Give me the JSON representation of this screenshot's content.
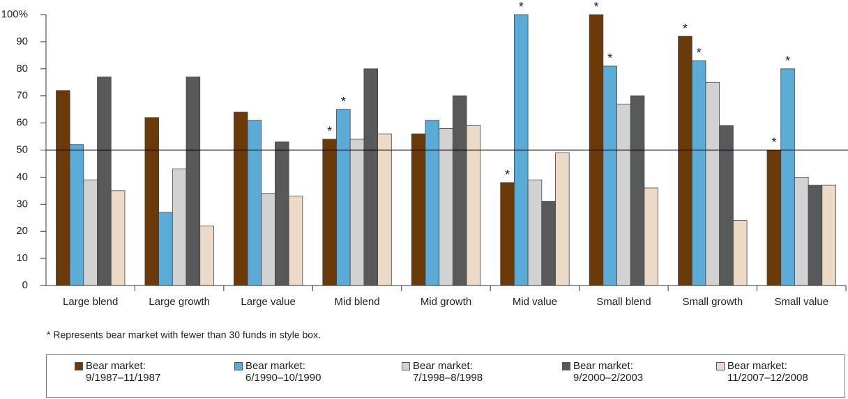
{
  "chart_data": {
    "type": "bar",
    "categories": [
      "Large blend",
      "Large growth",
      "Large value",
      "Mid blend",
      "Mid growth",
      "Mid value",
      "Small blend",
      "Small growth",
      "Small value"
    ],
    "series": [
      {
        "name": "Bear market:\n9/1987–11/1987",
        "color": "#6b3a08",
        "values": [
          72,
          62,
          64,
          54,
          56,
          38,
          100,
          92,
          50
        ],
        "starred": [
          false,
          false,
          false,
          true,
          false,
          true,
          true,
          true,
          true
        ]
      },
      {
        "name": "Bear market:\n6/1990–10/1990",
        "color": "#5aabd6",
        "values": [
          52,
          27,
          61,
          65,
          61,
          100,
          81,
          83,
          80
        ],
        "starred": [
          false,
          false,
          false,
          true,
          false,
          true,
          true,
          true,
          true
        ]
      },
      {
        "name": "Bear market:\n7/1998–8/1998",
        "color": "#d2d2d2",
        "values": [
          39,
          43,
          34,
          54,
          58,
          39,
          67,
          75,
          40
        ],
        "starred": [
          false,
          false,
          false,
          false,
          false,
          false,
          false,
          false,
          false
        ]
      },
      {
        "name": "Bear market:\n9/2000–2/2003",
        "color": "#58595b",
        "values": [
          77,
          77,
          53,
          80,
          70,
          31,
          70,
          59,
          37
        ],
        "starred": [
          false,
          false,
          false,
          false,
          false,
          false,
          false,
          false,
          false
        ]
      },
      {
        "name": "Bear market:\n11/2007–12/2008",
        "color": "#ecd9c6",
        "values": [
          35,
          22,
          33,
          56,
          59,
          49,
          36,
          24,
          37
        ],
        "starred": [
          false,
          false,
          false,
          false,
          false,
          false,
          false,
          false,
          false
        ]
      }
    ],
    "marker_text": "*",
    "reference_line": 50,
    "footnote": "* Represents bear market with fewer than 30 funds in style box.",
    "ylim": [
      0,
      100
    ],
    "yticks": [
      0,
      10,
      20,
      30,
      40,
      50,
      60,
      70,
      80,
      90,
      {
        "value": 100,
        "label": "100%"
      }
    ]
  }
}
